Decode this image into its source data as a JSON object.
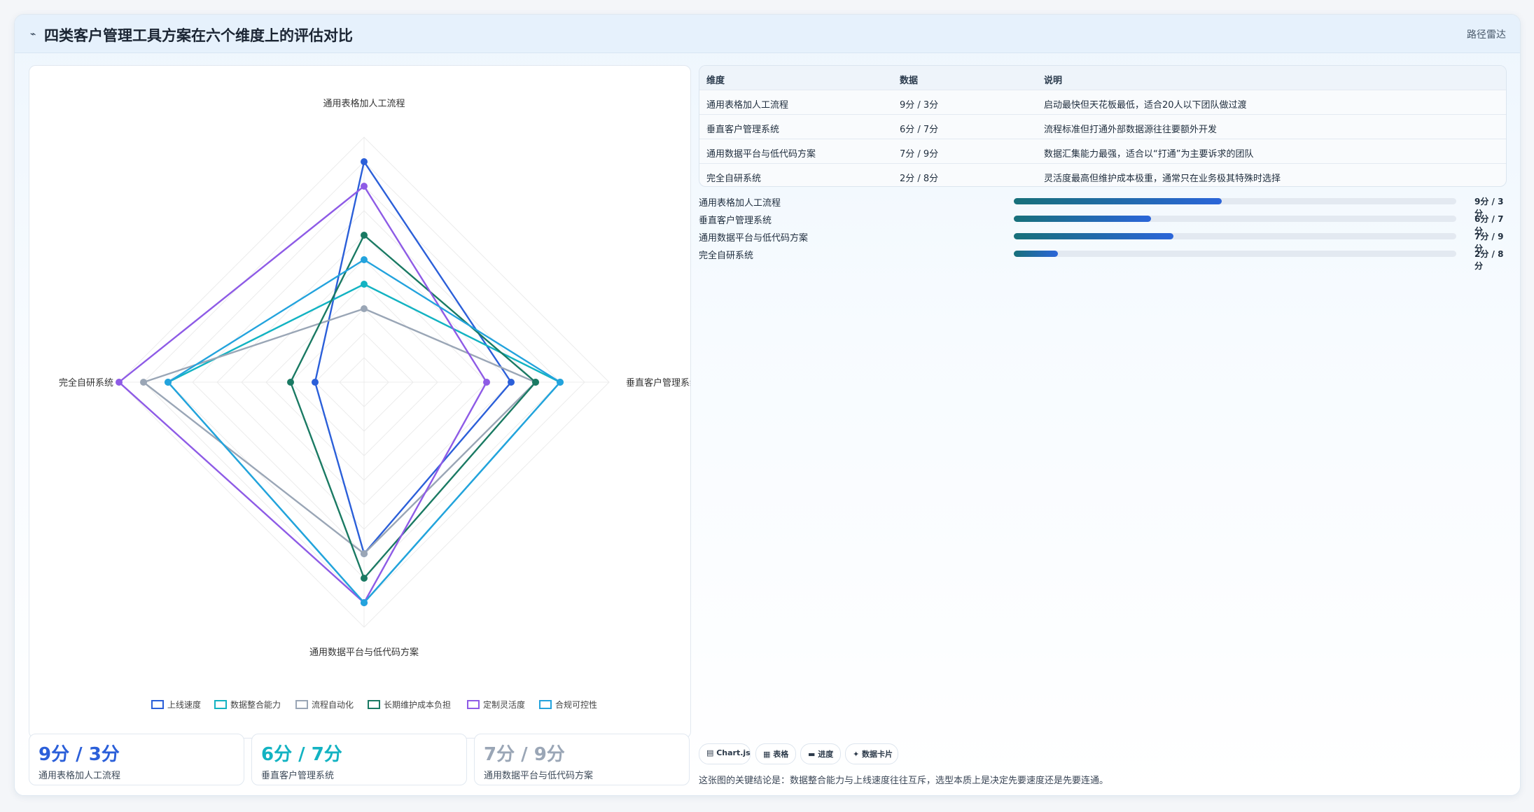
{
  "header": {
    "title": "四类客户管理工具方案在六个维度上的评估对比",
    "mode_label": "路径雷达"
  },
  "chart_data": {
    "type": "radar",
    "axes": [
      "通用表格加人工流程",
      "垂直客户管理系统",
      "通用数据平台与低代码方案",
      "完全自研系统"
    ],
    "r_max": 10,
    "series": [
      {
        "name": "上线速度",
        "color": "#2b5fd9",
        "values": [
          9,
          6,
          7,
          2
        ]
      },
      {
        "name": "数据整合能力",
        "color": "#13b3c2",
        "values": [
          4,
          8,
          9,
          8
        ]
      },
      {
        "name": "流程自动化",
        "color": "#9aa6b6",
        "values": [
          3,
          7,
          7,
          9
        ]
      },
      {
        "name": "长期维护成本负担",
        "color": "#1a7a63",
        "values": [
          6,
          7,
          8,
          3
        ]
      },
      {
        "name": "定制灵活度",
        "color": "#8e5be6",
        "values": [
          8,
          5,
          9,
          10
        ]
      },
      {
        "name": "合规可控性",
        "color": "#23a3dd",
        "values": [
          5,
          8,
          9,
          8
        ]
      }
    ],
    "legend_position": "bottom"
  },
  "stat_cards": [
    {
      "value": "9分 / 3分",
      "label": "通用表格加人工流程",
      "color": "#2b5fd9"
    },
    {
      "value": "6分 / 7分",
      "label": "垂直客户管理系统",
      "color": "#13b3c2"
    },
    {
      "value": "7分 / 9分",
      "label": "通用数据平台与低代码方案",
      "color": "#9aa6b6"
    }
  ],
  "table": {
    "headers": [
      "维度",
      "数据",
      "说明"
    ],
    "rows": [
      [
        "通用表格加人工流程",
        "9分 / 3分",
        "启动最快但天花板最低，适合20人以下团队做过渡"
      ],
      [
        "垂直客户管理系统",
        "6分 / 7分",
        "流程标准但打通外部数据源往往要额外开发"
      ],
      [
        "通用数据平台与低代码方案",
        "7分 / 9分",
        "数据汇集能力最强，适合以“打通”为主要诉求的团队"
      ],
      [
        "完全自研系统",
        "2分 / 8分",
        "灵活度最高但维护成本极重，通常只在业务极其特殊时选择"
      ]
    ]
  },
  "progress": [
    {
      "label": "通用表格加人工流程",
      "value": "9分 / 3分",
      "fraction": 0.47
    },
    {
      "label": "垂直客户管理系统",
      "value": "6分 / 7分",
      "fraction": 0.31
    },
    {
      "label": "通用数据平台与低代码方案",
      "value": "7分 / 9分",
      "fraction": 0.36
    },
    {
      "label": "完全自研系统",
      "value": "2分 / 8分",
      "fraction": 0.1
    }
  ],
  "tags": [
    "▤ Chart.js",
    "▦ 表格",
    "▬ 进度",
    "✦ 数据卡片"
  ],
  "footer_note": "这张图的关键结论是：数据整合能力与上线速度往往互斥，选型本质上是决定先要速度还是先要连通。"
}
